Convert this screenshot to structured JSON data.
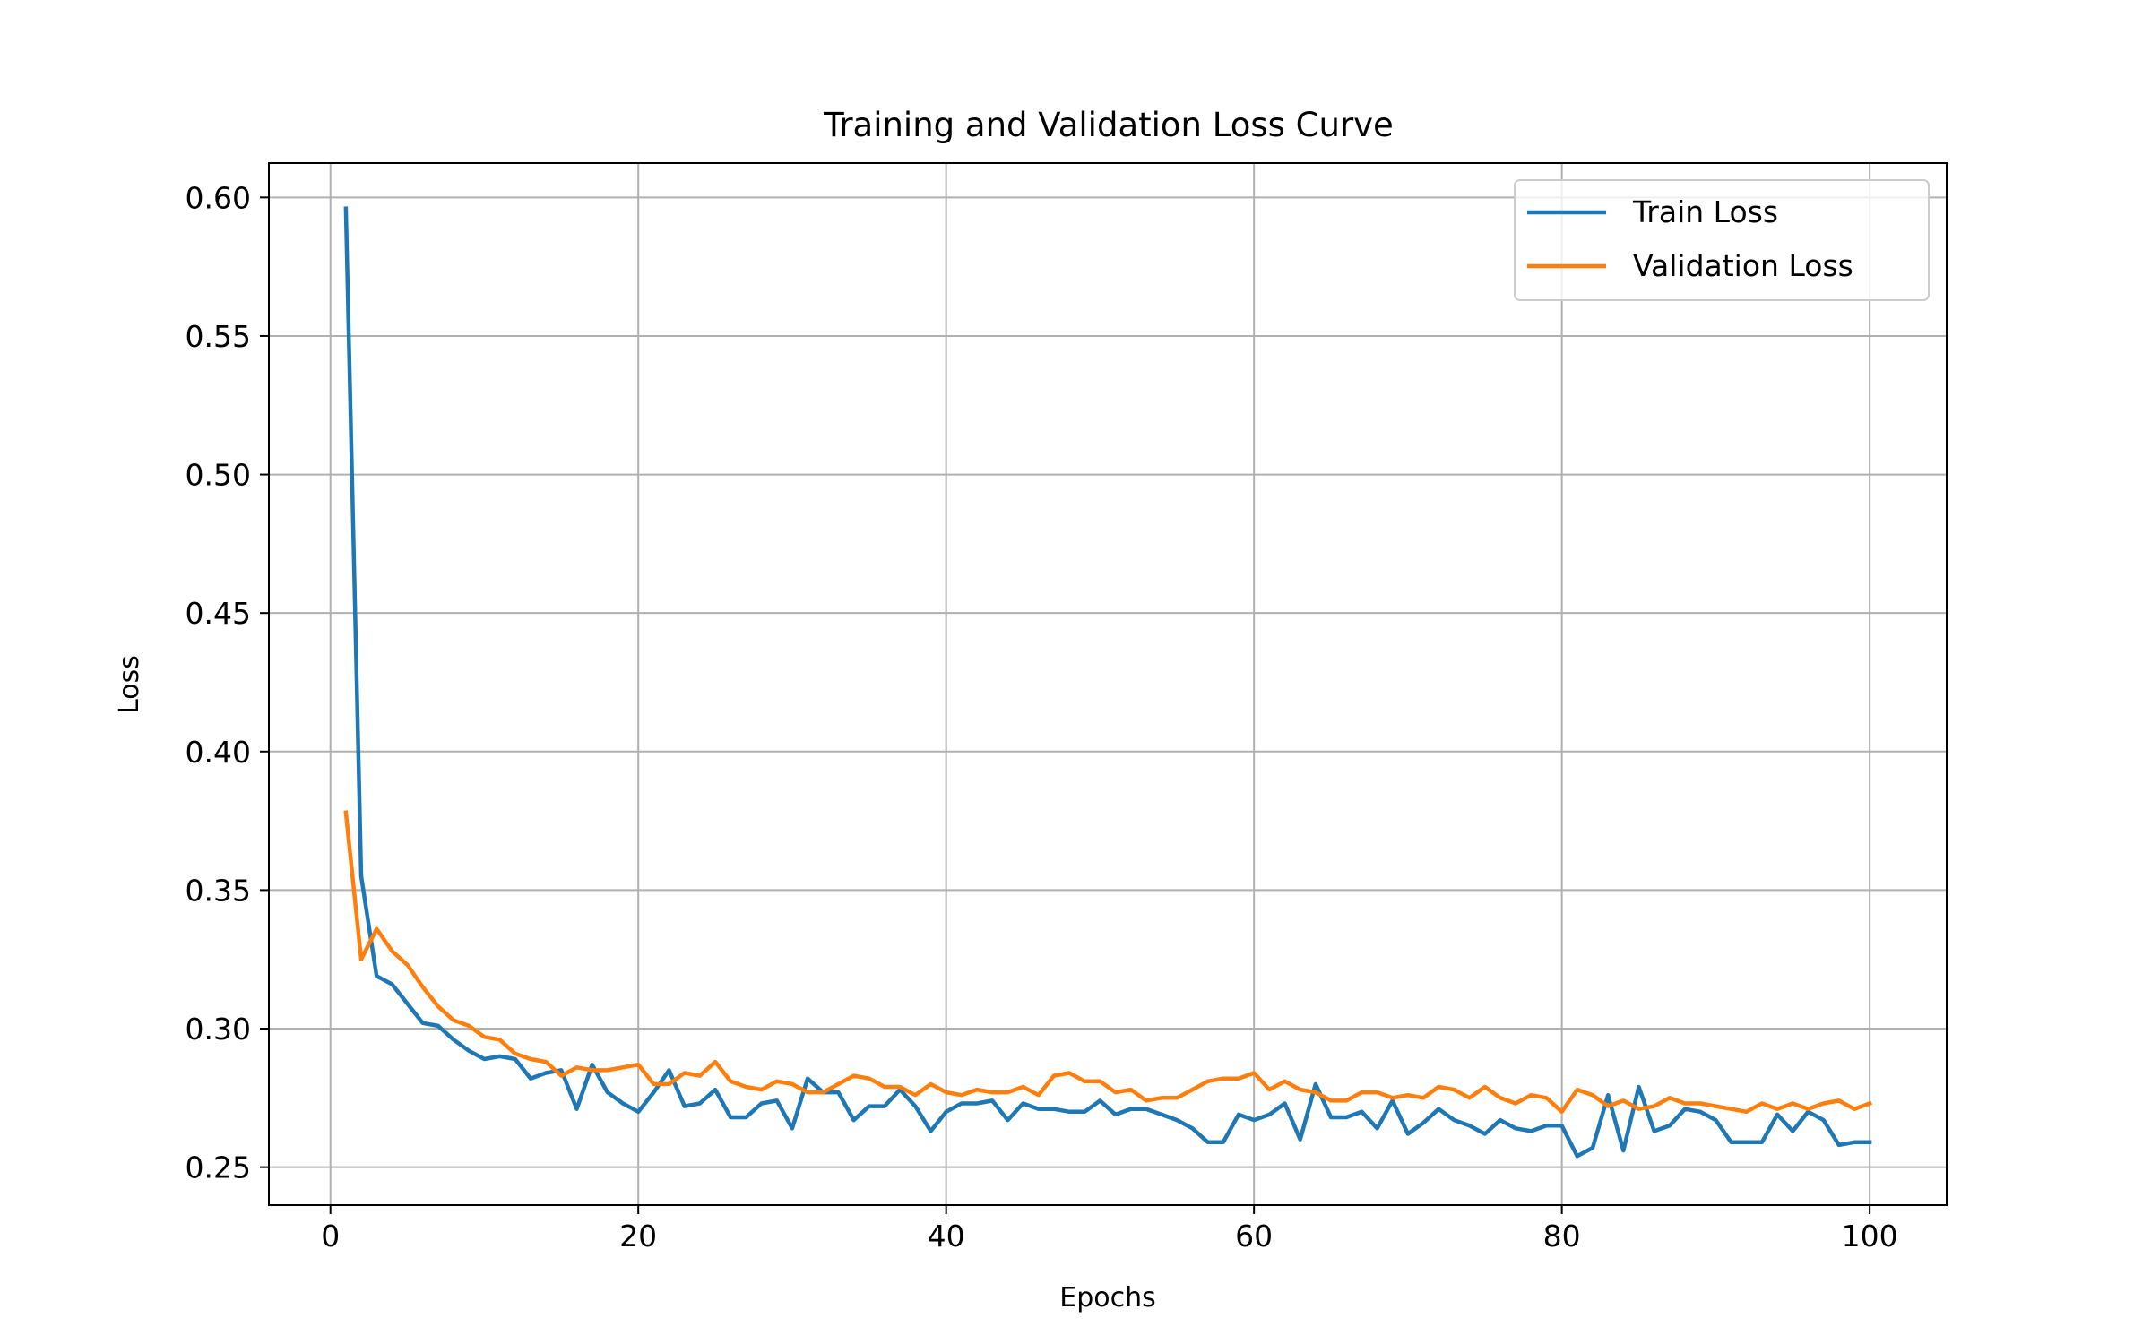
{
  "chart_data": {
    "type": "line",
    "title": "Training and Validation Loss Curve",
    "xlabel": "Epochs",
    "ylabel": "Loss",
    "xlim": [
      -4,
      105
    ],
    "ylim": [
      0.2363,
      0.6124
    ],
    "xticks": [
      0,
      20,
      40,
      60,
      80,
      100
    ],
    "xtick_labels": [
      "0",
      "20",
      "40",
      "60",
      "80",
      "100"
    ],
    "yticks": [
      0.25,
      0.3,
      0.35,
      0.4,
      0.45,
      0.5,
      0.55,
      0.6
    ],
    "ytick_labels": [
      "0.25",
      "0.30",
      "0.35",
      "0.40",
      "0.45",
      "0.50",
      "0.55",
      "0.60"
    ],
    "grid": true,
    "legend_position": "top-right",
    "x": [
      1,
      2,
      3,
      4,
      5,
      6,
      7,
      8,
      9,
      10,
      11,
      12,
      13,
      14,
      15,
      16,
      17,
      18,
      19,
      20,
      21,
      22,
      23,
      24,
      25,
      26,
      27,
      28,
      29,
      30,
      31,
      32,
      33,
      34,
      35,
      36,
      37,
      38,
      39,
      40,
      41,
      42,
      43,
      44,
      45,
      46,
      47,
      48,
      49,
      50,
      51,
      52,
      53,
      54,
      55,
      56,
      57,
      58,
      59,
      60,
      61,
      62,
      63,
      64,
      65,
      66,
      67,
      68,
      69,
      70,
      71,
      72,
      73,
      74,
      75,
      76,
      77,
      78,
      79,
      80,
      81,
      82,
      83,
      84,
      85,
      86,
      87,
      88,
      89,
      90,
      91,
      92,
      93,
      94,
      95,
      96,
      97,
      98,
      99,
      100
    ],
    "series": [
      {
        "name": "Train Loss",
        "color": "#1f77b4",
        "values": [
          0.596,
          0.355,
          0.319,
          0.316,
          0.309,
          0.302,
          0.301,
          0.296,
          0.292,
          0.289,
          0.29,
          0.289,
          0.282,
          0.284,
          0.285,
          0.271,
          0.287,
          0.277,
          0.273,
          0.27,
          0.277,
          0.285,
          0.272,
          0.273,
          0.278,
          0.268,
          0.268,
          0.273,
          0.274,
          0.264,
          0.282,
          0.277,
          0.277,
          0.267,
          0.272,
          0.272,
          0.278,
          0.272,
          0.263,
          0.27,
          0.273,
          0.273,
          0.274,
          0.267,
          0.273,
          0.271,
          0.271,
          0.27,
          0.27,
          0.274,
          0.269,
          0.271,
          0.271,
          0.269,
          0.267,
          0.264,
          0.259,
          0.259,
          0.269,
          0.267,
          0.269,
          0.273,
          0.26,
          0.28,
          0.268,
          0.268,
          0.27,
          0.264,
          0.274,
          0.262,
          0.266,
          0.271,
          0.267,
          0.265,
          0.262,
          0.267,
          0.264,
          0.263,
          0.265,
          0.265,
          0.254,
          0.257,
          0.276,
          0.256,
          0.279,
          0.263,
          0.265,
          0.271,
          0.27,
          0.267,
          0.259,
          0.259,
          0.259,
          0.269,
          0.263,
          0.27,
          0.267,
          0.258,
          0.259,
          0.259
        ]
      },
      {
        "name": "Validation Loss",
        "color": "#ff7f0e",
        "values": [
          0.378,
          0.325,
          0.336,
          0.328,
          0.323,
          0.315,
          0.308,
          0.303,
          0.301,
          0.297,
          0.296,
          0.291,
          0.289,
          0.288,
          0.283,
          0.286,
          0.285,
          0.285,
          0.286,
          0.287,
          0.28,
          0.28,
          0.284,
          0.283,
          0.288,
          0.281,
          0.279,
          0.278,
          0.281,
          0.28,
          0.277,
          0.277,
          0.28,
          0.283,
          0.282,
          0.279,
          0.279,
          0.276,
          0.28,
          0.277,
          0.276,
          0.278,
          0.277,
          0.277,
          0.279,
          0.276,
          0.283,
          0.284,
          0.281,
          0.281,
          0.277,
          0.278,
          0.274,
          0.275,
          0.275,
          0.278,
          0.281,
          0.282,
          0.282,
          0.284,
          0.278,
          0.281,
          0.278,
          0.277,
          0.274,
          0.274,
          0.277,
          0.277,
          0.275,
          0.276,
          0.275,
          0.279,
          0.278,
          0.275,
          0.279,
          0.275,
          0.273,
          0.276,
          0.275,
          0.27,
          0.278,
          0.276,
          0.272,
          0.274,
          0.271,
          0.272,
          0.275,
          0.273,
          0.273,
          0.272,
          0.271,
          0.27,
          0.273,
          0.271,
          0.273,
          0.271,
          0.273,
          0.274,
          0.271,
          0.273
        ]
      }
    ]
  }
}
